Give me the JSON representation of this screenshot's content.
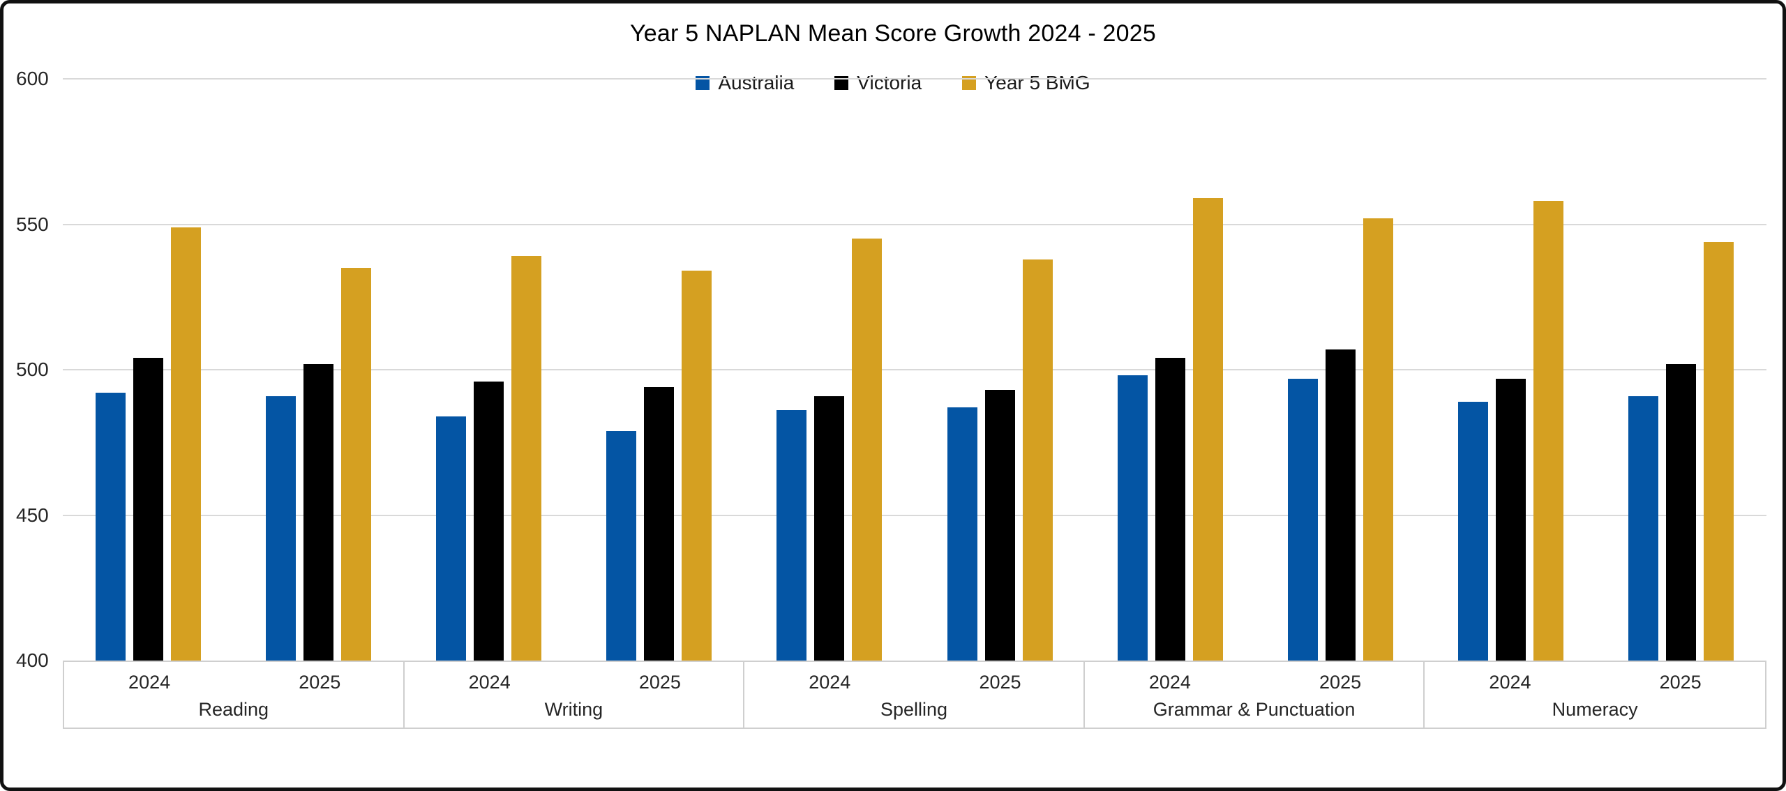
{
  "title": "Year 5 NAPLAN Mean Score Growth 2024 - 2025",
  "legend": [
    {
      "label": "Australia",
      "color": "#0455A4"
    },
    {
      "label": "Victoria",
      "color": "#000000"
    },
    {
      "label": "Year 5 BMG",
      "color": "#D5A021"
    }
  ],
  "colors": {
    "australia": "#0455A4",
    "victoria": "#000000",
    "bmg": "#D5A021",
    "gridline": "#D9D9D9",
    "axis_box_border": "#CFCFCF",
    "frame_border": "#111111"
  },
  "chart_data": {
    "type": "bar",
    "title": "Year 5 NAPLAN Mean Score Growth 2024 - 2025",
    "ylabel": "",
    "xlabel": "",
    "ylim": [
      400,
      600
    ],
    "yticks": [
      400,
      450,
      500,
      550,
      600
    ],
    "grid": true,
    "legend_position": "top-center",
    "series_names": [
      "Australia",
      "Victoria",
      "Year 5 BMG"
    ],
    "series_colors": [
      "#0455A4",
      "#000000",
      "#D5A021"
    ],
    "groups": [
      {
        "subject": "Reading",
        "entries": [
          {
            "year": "2024",
            "values": [
              492,
              504,
              549
            ]
          },
          {
            "year": "2025",
            "values": [
              491,
              502,
              535
            ]
          }
        ]
      },
      {
        "subject": "Writing",
        "entries": [
          {
            "year": "2024",
            "values": [
              484,
              496,
              539
            ]
          },
          {
            "year": "2025",
            "values": [
              479,
              494,
              534
            ]
          }
        ]
      },
      {
        "subject": "Spelling",
        "entries": [
          {
            "year": "2024",
            "values": [
              486,
              491,
              545
            ]
          },
          {
            "year": "2025",
            "values": [
              487,
              493,
              538
            ]
          }
        ]
      },
      {
        "subject": "Grammar & Punctuation",
        "entries": [
          {
            "year": "2024",
            "values": [
              498,
              504,
              559
            ]
          },
          {
            "year": "2025",
            "values": [
              497,
              507,
              552
            ]
          }
        ]
      },
      {
        "subject": "Numeracy",
        "entries": [
          {
            "year": "2024",
            "values": [
              489,
              497,
              558
            ]
          },
          {
            "year": "2025",
            "values": [
              491,
              502,
              544
            ]
          }
        ]
      }
    ]
  }
}
